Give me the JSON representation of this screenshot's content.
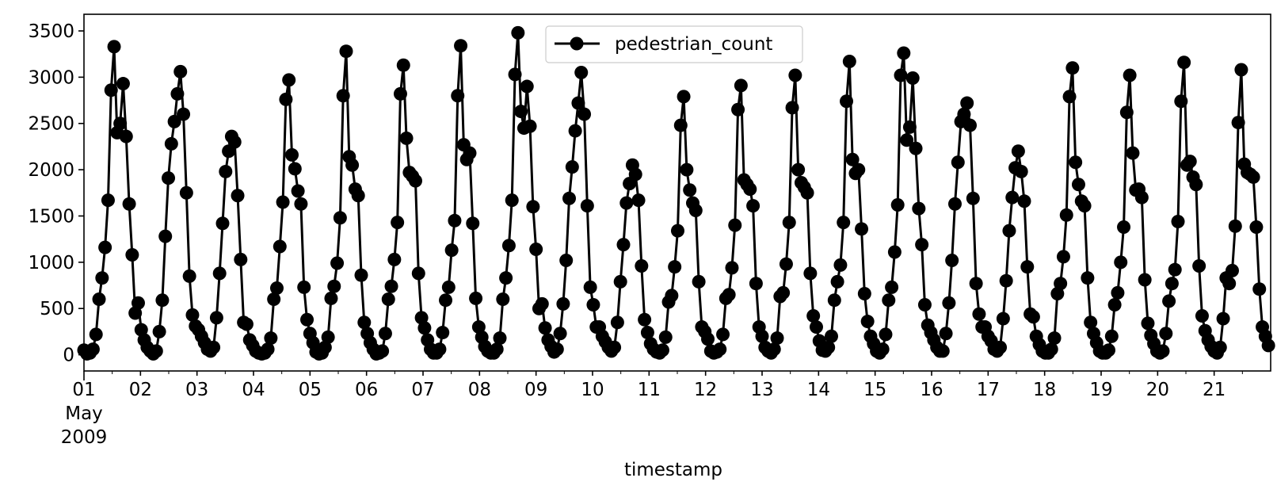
{
  "chart_data": {
    "type": "line",
    "title": "",
    "xlabel": "timestamp",
    "ylabel": "",
    "x_start": "2009-05-01 00:00",
    "x_end": "2009-05-21 23:00",
    "x_ticks": [
      "01",
      "02",
      "03",
      "04",
      "05",
      "06",
      "07",
      "08",
      "09",
      "10",
      "11",
      "12",
      "13",
      "14",
      "15",
      "16",
      "17",
      "18",
      "19",
      "20",
      "21"
    ],
    "x_tick_sublabels": [
      "May",
      "2009"
    ],
    "ylim": [
      -175,
      3680
    ],
    "y_ticks": [
      0,
      500,
      1000,
      1500,
      2000,
      2500,
      3000,
      3500
    ],
    "grid": false,
    "legend_position": "top-center",
    "line_color": "#000000",
    "marker": "circle",
    "sampling": "every 2 hours",
    "series": [
      {
        "name": "pedestrian_count",
        "values": [
          50,
          10,
          20,
          60,
          220,
          600,
          830,
          1160,
          1670,
          2860,
          3330,
          2400,
          2500,
          2930,
          2360,
          1630,
          1080,
          450,
          560,
          270,
          160,
          80,
          40,
          10,
          40,
          250,
          590,
          1280,
          1910,
          2280,
          2520,
          2820,
          3060,
          2600,
          1750,
          850,
          430,
          310,
          270,
          200,
          130,
          60,
          40,
          80,
          400,
          880,
          1420,
          1980,
          2200,
          2360,
          2300,
          1720,
          1030,
          350,
          330,
          160,
          100,
          40,
          20,
          10,
          20,
          60,
          180,
          600,
          720,
          1170,
          1650,
          2760,
          2970,
          2160,
          2010,
          1770,
          1630,
          730,
          380,
          230,
          130,
          30,
          10,
          20,
          80,
          190,
          610,
          740,
          990,
          1480,
          2800,
          3280,
          2140,
          2050,
          1790,
          1720,
          860,
          350,
          230,
          130,
          60,
          10,
          20,
          40,
          230,
          600,
          740,
          1030,
          1430,
          2820,
          3130,
          2340,
          1970,
          1930,
          1880,
          880,
          400,
          290,
          160,
          60,
          20,
          20,
          60,
          240,
          590,
          730,
          1130,
          1450,
          2800,
          3340,
          2270,
          2110,
          2180,
          1420,
          610,
          300,
          190,
          90,
          40,
          20,
          20,
          60,
          180,
          600,
          830,
          1180,
          1670,
          3030,
          3480,
          2630,
          2450,
          2900,
          2470,
          1600,
          1140,
          500,
          550,
          290,
          160,
          90,
          30,
          60,
          230,
          550,
          1020,
          1690,
          2030,
          2420,
          2720,
          3050,
          2600,
          1610,
          730,
          540,
          300,
          300,
          200,
          140,
          80,
          40,
          80,
          350,
          790,
          1190,
          1640,
          1850,
          2050,
          1950,
          1670,
          960,
          380,
          240,
          120,
          60,
          30,
          20,
          50,
          190,
          570,
          640,
          950,
          1340,
          2480,
          2790,
          2000,
          1780,
          1640,
          1560,
          790,
          300,
          250,
          170,
          40,
          20,
          30,
          60,
          220,
          610,
          650,
          940,
          1400,
          2650,
          2910,
          1890,
          1840,
          1790,
          1610,
          770,
          300,
          200,
          80,
          40,
          20,
          60,
          180,
          630,
          670,
          980,
          1430,
          2670,
          3020,
          2000,
          1860,
          1810,
          1750,
          880,
          420,
          300,
          150,
          50,
          40,
          80,
          200,
          590,
          790,
          970,
          1430,
          2740,
          3170,
          2110,
          1960,
          2000,
          1360,
          660,
          360,
          200,
          120,
          40,
          20,
          60,
          220,
          590,
          730,
          1110,
          1620,
          3020,
          3260,
          2320,
          2460,
          2990,
          2230,
          1580,
          1190,
          540,
          320,
          240,
          160,
          80,
          40,
          40,
          230,
          560,
          1020,
          1630,
          2080,
          2520,
          2600,
          2720,
          2480,
          1690,
          770,
          440,
          300,
          300,
          200,
          150,
          60,
          40,
          80,
          390,
          800,
          1340,
          1700,
          2020,
          2200,
          1980,
          1660,
          950,
          440,
          410,
          200,
          110,
          40,
          20,
          20,
          60,
          180,
          660,
          770,
          1060,
          1510,
          2790,
          3100,
          2080,
          1840,
          1660,
          1610,
          830,
          350,
          230,
          130,
          40,
          20,
          20,
          50,
          200,
          540,
          670,
          1000,
          1380,
          2620,
          3020,
          2180,
          1780,
          1790,
          1700,
          810,
          340,
          210,
          120,
          40,
          20,
          40,
          230,
          580,
          770,
          920,
          1440,
          2740,
          3160,
          2050,
          2090,
          1920,
          1840,
          960,
          420,
          260,
          160,
          90,
          40,
          20,
          80,
          390,
          830,
          770,
          910,
          1390,
          2510,
          3080,
          2060,
          1970,
          1950,
          1920,
          1380,
          710,
          300,
          200,
          100
        ]
      }
    ]
  }
}
